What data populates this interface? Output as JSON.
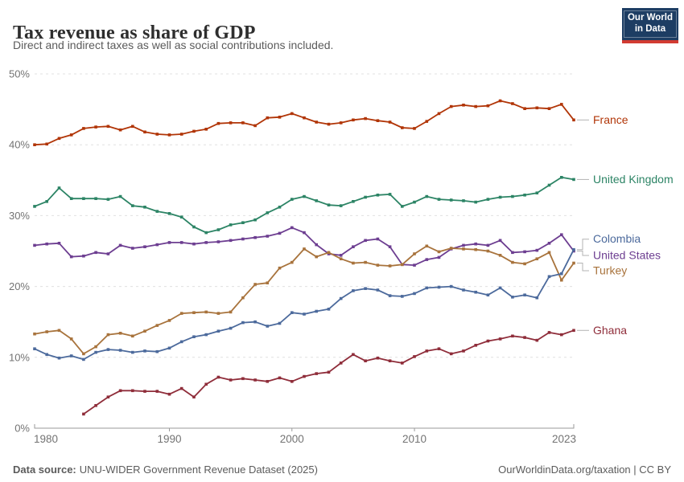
{
  "header": {
    "title": "Tax revenue as share of GDP",
    "subtitle": "Direct and indirect taxes as well as social contributions included."
  },
  "logo": {
    "line1": "Our World",
    "line2": "in Data",
    "bg_color": "#1d3d63",
    "bar_color": "#d23b32"
  },
  "footer": {
    "source_label": "Data source:",
    "source_name": "UNU-WIDER Government Revenue Dataset (2025)",
    "link": "OurWorldinData.org/taxation | CC BY"
  },
  "chart_data": {
    "type": "line",
    "title": "Tax revenue as share of GDP",
    "xlabel": "",
    "ylabel": "",
    "xlim": [
      1979,
      2023
    ],
    "ylim": [
      0,
      50
    ],
    "x_step": 1,
    "grid": "horizontal-dashed",
    "markers": "square",
    "legend_position": "right-edge-labels",
    "x_ticks": [
      1980,
      1990,
      2000,
      2010,
      2023
    ],
    "y_tick_values": [
      0,
      10,
      20,
      30,
      40,
      50
    ],
    "y_tick_labels": [
      "0%",
      "10%",
      "20%",
      "30%",
      "40%",
      "50%"
    ],
    "series": [
      {
        "name": "France",
        "color": "#b13507",
        "start_year": 1979,
        "values": [
          40.0,
          40.1,
          40.9,
          41.4,
          42.3,
          42.5,
          42.6,
          42.1,
          42.6,
          41.8,
          41.5,
          41.4,
          41.5,
          41.9,
          42.2,
          43.0,
          43.1,
          43.1,
          42.7,
          43.8,
          43.9,
          44.4,
          43.8,
          43.2,
          42.9,
          43.1,
          43.5,
          43.7,
          43.4,
          43.2,
          42.4,
          42.3,
          43.3,
          44.4,
          45.4,
          45.6,
          45.4,
          45.5,
          46.2,
          45.8,
          45.1,
          45.2,
          45.1,
          45.7,
          43.5
        ]
      },
      {
        "name": "United Kingdom",
        "color": "#2c8465",
        "start_year": 1979,
        "values": [
          31.3,
          32.0,
          33.9,
          32.4,
          32.4,
          32.4,
          32.3,
          32.7,
          31.4,
          31.2,
          30.6,
          30.3,
          29.8,
          28.4,
          27.6,
          28.0,
          28.7,
          29.0,
          29.4,
          30.4,
          31.2,
          32.3,
          32.7,
          32.1,
          31.5,
          31.4,
          32.0,
          32.6,
          32.9,
          33.0,
          31.3,
          31.9,
          32.7,
          32.3,
          32.2,
          32.1,
          31.9,
          32.3,
          32.6,
          32.7,
          32.9,
          33.2,
          34.3,
          35.4,
          35.1
        ]
      },
      {
        "name": "United States",
        "color": "#6d3e91",
        "start_year": 1979,
        "values": [
          25.8,
          26.0,
          26.1,
          24.2,
          24.3,
          24.8,
          24.6,
          25.8,
          25.4,
          25.6,
          25.9,
          26.2,
          26.2,
          26.0,
          26.2,
          26.3,
          26.5,
          26.7,
          26.9,
          27.1,
          27.5,
          28.3,
          27.6,
          25.9,
          24.6,
          24.4,
          25.6,
          26.5,
          26.7,
          25.6,
          23.1,
          23.0,
          23.8,
          24.1,
          25.3,
          25.8,
          26.0,
          25.8,
          26.5,
          24.8,
          24.9,
          25.1,
          26.1,
          27.3,
          25.0
        ]
      },
      {
        "name": "Turkey",
        "color": "#a8733c",
        "start_year": 1979,
        "values": [
          13.3,
          13.6,
          13.8,
          12.6,
          10.5,
          11.5,
          13.2,
          13.4,
          13.0,
          13.7,
          14.5,
          15.2,
          16.2,
          16.3,
          16.4,
          16.2,
          16.4,
          18.4,
          20.3,
          20.5,
          22.6,
          23.4,
          25.3,
          24.2,
          24.8,
          23.9,
          23.3,
          23.4,
          23.0,
          22.9,
          23.1,
          24.6,
          25.7,
          24.9,
          25.4,
          25.3,
          25.2,
          25.0,
          24.4,
          23.4,
          23.2,
          23.9,
          24.8,
          20.9,
          23.3
        ]
      },
      {
        "name": "Colombia",
        "color": "#4c6a9c",
        "start_year": 1979,
        "values": [
          11.2,
          10.4,
          9.9,
          10.2,
          9.7,
          10.7,
          11.1,
          11.0,
          10.7,
          10.9,
          10.8,
          11.3,
          12.2,
          12.9,
          13.2,
          13.7,
          14.1,
          14.9,
          15.0,
          14.4,
          14.8,
          16.3,
          16.1,
          16.5,
          16.8,
          18.3,
          19.4,
          19.7,
          19.5,
          18.7,
          18.6,
          19.0,
          19.8,
          19.9,
          20.0,
          19.5,
          19.2,
          18.8,
          19.8,
          18.5,
          18.8,
          18.4,
          21.4,
          21.8,
          25.2
        ]
      },
      {
        "name": "Ghana",
        "color": "#8f2d3a",
        "start_year": 1983,
        "values": [
          2.0,
          3.2,
          4.4,
          5.3,
          5.3,
          5.2,
          5.2,
          4.8,
          5.6,
          4.4,
          6.2,
          7.2,
          6.8,
          7.0,
          6.8,
          6.6,
          7.1,
          6.6,
          7.3,
          7.7,
          7.9,
          9.2,
          10.4,
          9.5,
          9.9,
          9.5,
          9.2,
          10.1,
          10.9,
          11.2,
          10.5,
          10.9,
          11.7,
          12.3,
          12.6,
          13.0,
          12.8,
          12.4,
          13.5,
          13.2,
          13.8
        ]
      }
    ]
  }
}
